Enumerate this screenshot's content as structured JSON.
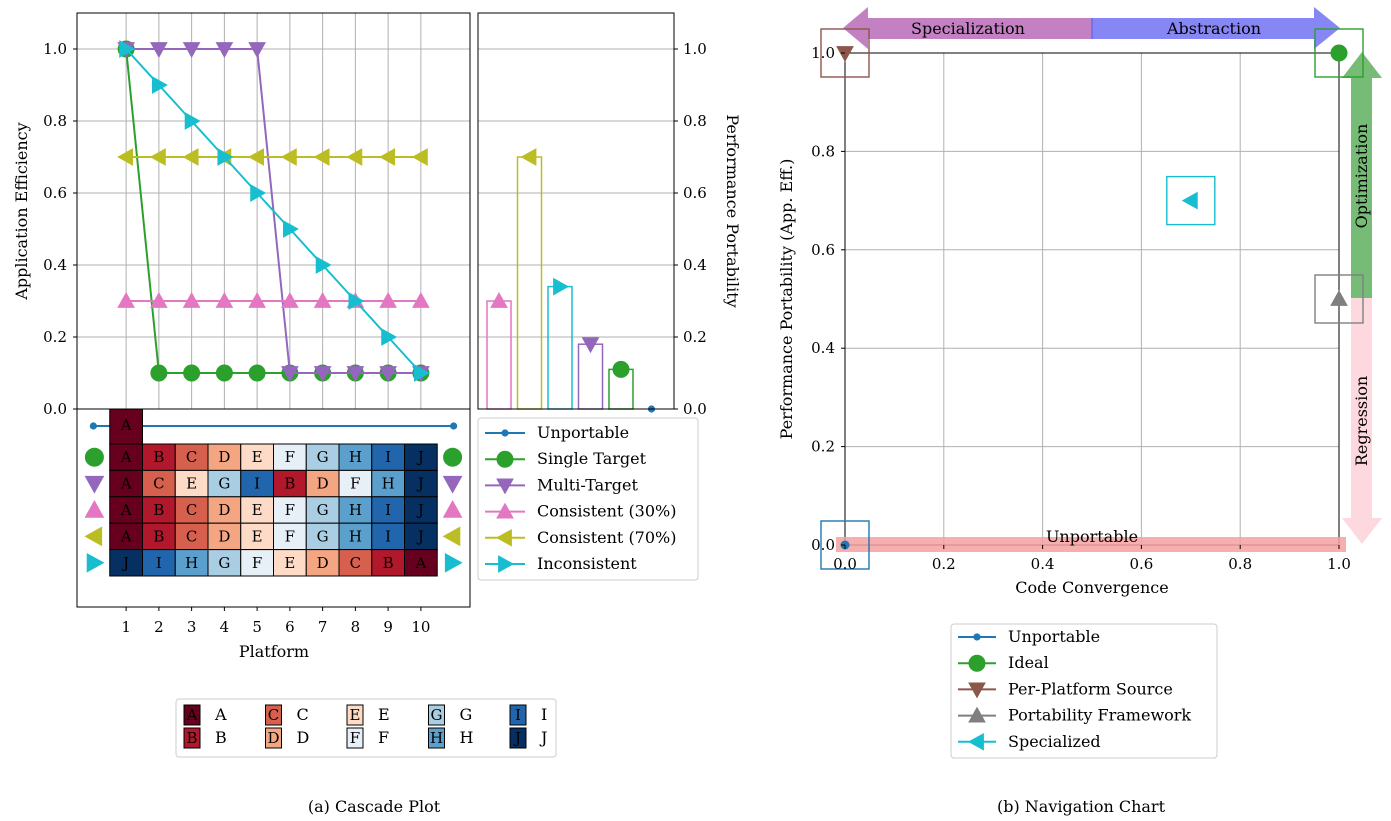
{
  "colors": {
    "unportable": "#1f77b4",
    "single_target": "#2ca02c",
    "multi_target": "#9467bd",
    "consistent30": "#e377c2",
    "consistent70": "#bcbd22",
    "inconsistent": "#17becf",
    "per_platform": "#8c564b",
    "framework": "#7f7f7f",
    "grid": "#b0b0b0",
    "rank": {
      "A": "#67001f",
      "B": "#b2182b",
      "C": "#d6604d",
      "D": "#f4a582",
      "E": "#fddbc7",
      "F": "#e8f0f7",
      "G": "#a9cde3",
      "H": "#5b9fcc",
      "I": "#2166ac",
      "J": "#053061"
    }
  },
  "chart_data": [
    {
      "type": "line",
      "id": "cascade",
      "caption": "(a) Cascade Plot",
      "xlabel": "Platform",
      "ylabel": "Application Efficiency",
      "x": [
        1,
        2,
        3,
        4,
        5,
        6,
        7,
        8,
        9,
        10
      ],
      "xlim": [
        -0.5,
        11.5
      ],
      "ylim": [
        0,
        1.1
      ],
      "yticks": [
        "0.0",
        "0.2",
        "0.4",
        "0.6",
        "0.8",
        "1.0"
      ],
      "grid": true,
      "series": [
        {
          "name": "Unportable",
          "key": "unportable",
          "marker": "dot",
          "x": [
            1
          ],
          "y": [
            1.0
          ],
          "pp": 0.0,
          "ranking": [
            "A"
          ]
        },
        {
          "name": "Single Target",
          "key": "single_target",
          "marker": "circle",
          "x": [
            1,
            2,
            3,
            4,
            5,
            6,
            7,
            8,
            9,
            10
          ],
          "y": [
            1.0,
            0.1,
            0.1,
            0.1,
            0.1,
            0.1,
            0.1,
            0.1,
            0.1,
            0.1
          ],
          "pp": 0.11,
          "ranking": [
            "A",
            "B",
            "C",
            "D",
            "E",
            "F",
            "G",
            "H",
            "I",
            "J"
          ]
        },
        {
          "name": "Multi-Target",
          "key": "multi_target",
          "marker": "tri_down",
          "x": [
            1,
            2,
            3,
            4,
            5,
            6,
            7,
            8,
            9,
            10
          ],
          "y": [
            1.0,
            1.0,
            1.0,
            1.0,
            1.0,
            0.1,
            0.1,
            0.1,
            0.1,
            0.1
          ],
          "pp": 0.18,
          "ranking": [
            "A",
            "C",
            "E",
            "G",
            "I",
            "B",
            "D",
            "F",
            "H",
            "J"
          ]
        },
        {
          "name": "Consistent (30%)",
          "key": "consistent30",
          "marker": "tri_up",
          "x": [
            1,
            2,
            3,
            4,
            5,
            6,
            7,
            8,
            9,
            10
          ],
          "y": [
            0.3,
            0.3,
            0.3,
            0.3,
            0.3,
            0.3,
            0.3,
            0.3,
            0.3,
            0.3
          ],
          "pp": 0.3,
          "ranking": [
            "A",
            "B",
            "C",
            "D",
            "E",
            "F",
            "G",
            "H",
            "I",
            "J"
          ]
        },
        {
          "name": "Consistent (70%)",
          "key": "consistent70",
          "marker": "tri_left",
          "x": [
            1,
            2,
            3,
            4,
            5,
            6,
            7,
            8,
            9,
            10
          ],
          "y": [
            0.7,
            0.7,
            0.7,
            0.7,
            0.7,
            0.7,
            0.7,
            0.7,
            0.7,
            0.7
          ],
          "pp": 0.7,
          "ranking": [
            "A",
            "B",
            "C",
            "D",
            "E",
            "F",
            "G",
            "H",
            "I",
            "J"
          ]
        },
        {
          "name": "Inconsistent",
          "key": "inconsistent",
          "marker": "tri_right",
          "x": [
            1,
            2,
            3,
            4,
            5,
            6,
            7,
            8,
            9,
            10
          ],
          "y": [
            1.0,
            0.9,
            0.8,
            0.7,
            0.6,
            0.5,
            0.4,
            0.3,
            0.2,
            0.1
          ],
          "pp": 0.34,
          "ranking": [
            "J",
            "I",
            "H",
            "G",
            "F",
            "E",
            "D",
            "C",
            "B",
            "A"
          ]
        }
      ],
      "pp_axis": {
        "label": "Performance Portability",
        "ylim": [
          0,
          1.1
        ],
        "yticks": [
          "0.0",
          "0.2",
          "0.4",
          "0.6",
          "0.8",
          "1.0"
        ]
      },
      "platform_legend": [
        "A",
        "B",
        "C",
        "D",
        "E",
        "F",
        "G",
        "H",
        "I",
        "J"
      ]
    },
    {
      "type": "scatter",
      "id": "navigation",
      "caption": "(b) Navigation Chart",
      "xlabel": "Code Convergence",
      "ylabel": "Performance Portability (App. Eff.)",
      "xlim": [
        -0.02,
        1.02
      ],
      "ylim": [
        -0.02,
        1.02
      ],
      "xticks": [
        "0.0",
        "0.2",
        "0.4",
        "0.6",
        "0.8",
        "1.0"
      ],
      "yticks": [
        "0.0",
        "0.2",
        "0.4",
        "0.6",
        "0.8",
        "1.0"
      ],
      "grid": true,
      "points": [
        {
          "name": "Unportable",
          "key": "unportable",
          "marker": "dot",
          "x": 0.0,
          "y": 0.0
        },
        {
          "name": "Ideal",
          "key": "single_target",
          "marker": "circle",
          "x": 1.0,
          "y": 1.0
        },
        {
          "name": "Per-Platform Source",
          "key": "per_platform",
          "marker": "tri_down",
          "x": 0.0,
          "y": 1.0
        },
        {
          "name": "Portability Framework",
          "key": "framework",
          "marker": "tri_up",
          "x": 1.0,
          "y": 0.5
        },
        {
          "name": "Specialized",
          "key": "inconsistent",
          "marker": "tri_left",
          "x": 0.7,
          "y": 0.7
        }
      ],
      "annotations": {
        "specialization": "Specialization",
        "abstraction": "Abstraction",
        "optimization": "Optimization",
        "regression": "Regression",
        "unportable": "Unportable"
      }
    }
  ]
}
